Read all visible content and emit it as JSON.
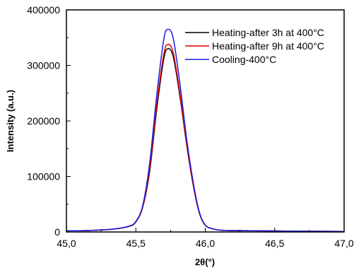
{
  "chart_data": {
    "type": "line",
    "xlabel": "2θ(°)",
    "ylabel": "Intensity (a.u.)",
    "xlim": [
      45.0,
      47.0
    ],
    "ylim": [
      0,
      400000
    ],
    "x_ticks": [
      "45,0",
      "45,5",
      "46,0",
      "46,5",
      "47,0"
    ],
    "x_tick_values": [
      45.0,
      45.5,
      46.0,
      46.5,
      47.0
    ],
    "y_ticks": [
      "0",
      "100000",
      "200000",
      "300000",
      "400000"
    ],
    "y_tick_values": [
      0,
      100000,
      200000,
      300000,
      400000
    ],
    "grid": false,
    "legend_position": "top-right",
    "series": [
      {
        "name": "Heating-after 3h at 400°C",
        "color": "#000000",
        "x": [
          45.0,
          45.2,
          45.35,
          45.45,
          45.5,
          45.55,
          45.6,
          45.65,
          45.7,
          45.73,
          45.77,
          45.82,
          45.87,
          45.92,
          45.96,
          46.0,
          46.05,
          46.1,
          46.2,
          46.4,
          46.7,
          47.0
        ],
        "y": [
          2000,
          3000,
          5500,
          10000,
          18000,
          45000,
          110000,
          220000,
          310000,
          330000,
          315000,
          240000,
          150000,
          75000,
          32000,
          12000,
          6000,
          3500,
          2500,
          2000,
          1500,
          1000
        ]
      },
      {
        "name": "Heating-after 9h at 400°C",
        "color": "#e00000",
        "x": [
          45.0,
          45.2,
          45.35,
          45.45,
          45.5,
          45.55,
          45.6,
          45.65,
          45.7,
          45.73,
          45.77,
          45.82,
          45.87,
          45.92,
          45.96,
          46.0,
          46.05,
          46.1,
          46.2,
          46.4,
          46.7,
          47.0
        ],
        "y": [
          2000,
          3000,
          5500,
          10000,
          18000,
          46000,
          115000,
          228000,
          318000,
          338000,
          322000,
          245000,
          152000,
          76000,
          32500,
          12000,
          6000,
          3500,
          2500,
          2000,
          1500,
          1000
        ]
      },
      {
        "name": "Cooling-400°C",
        "color": "#1a1adf",
        "x": [
          45.0,
          45.2,
          45.35,
          45.45,
          45.5,
          45.55,
          45.6,
          45.65,
          45.7,
          45.73,
          45.77,
          45.82,
          45.87,
          45.92,
          45.96,
          46.0,
          46.05,
          46.1,
          46.2,
          46.4,
          46.7,
          47.0
        ],
        "y": [
          2000,
          3000,
          5500,
          10500,
          19000,
          48000,
          125000,
          245000,
          345000,
          365000,
          348000,
          262000,
          160000,
          80000,
          34000,
          12500,
          6000,
          3500,
          2500,
          2000,
          1500,
          1000
        ]
      }
    ]
  }
}
